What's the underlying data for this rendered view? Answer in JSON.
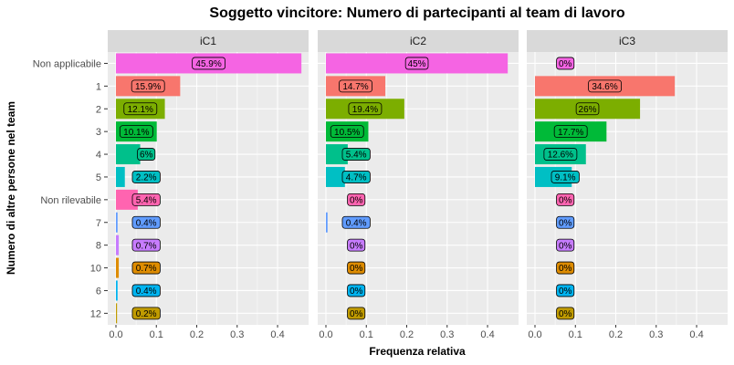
{
  "chart_data": {
    "type": "bar",
    "orientation": "horizontal",
    "title": "Soggetto vincitore: Numero di partecipanti al team di lavoro",
    "xlabel": "Frequenza relativa",
    "ylabel": "Numero di altre persone nel team",
    "xlim": [
      0,
      0.5
    ],
    "x_ticks": [
      "0.0",
      "0.1",
      "0.2",
      "0.3",
      "0.4"
    ],
    "grid": true,
    "legend": "none",
    "categories": [
      "Non applicabile",
      "1",
      "2",
      "3",
      "4",
      "5",
      "Non rilevabile",
      "7",
      "8",
      "10",
      "6",
      "12"
    ],
    "colors": [
      "#F564E3",
      "#F8766D",
      "#7CAE00",
      "#00BA38",
      "#00C08B",
      "#00BFC4",
      "#FF64B0",
      "#619CFF",
      "#C77CFF",
      "#DE8C00",
      "#00B4F0",
      "#C09B00"
    ],
    "panels": [
      {
        "name": "iC1",
        "values": [
          0.459,
          0.159,
          0.121,
          0.101,
          0.06,
          0.022,
          0.054,
          0.004,
          0.007,
          0.007,
          0.004,
          0.002
        ],
        "labels": [
          "45.9%",
          "15.9%",
          "12.1%",
          "10.1%",
          "6%",
          "2.2%",
          "5.4%",
          "0.4%",
          "0.7%",
          "0.7%",
          "0.4%",
          "0.2%"
        ]
      },
      {
        "name": "iC2",
        "values": [
          0.45,
          0.147,
          0.194,
          0.105,
          0.054,
          0.047,
          0,
          0.004,
          0,
          0,
          0,
          0
        ],
        "labels": [
          "45%",
          "14.7%",
          "19.4%",
          "10.5%",
          "5.4%",
          "4.7%",
          "0%",
          "0.4%",
          "0%",
          "0%",
          "0%",
          "0%"
        ]
      },
      {
        "name": "iC3",
        "values": [
          0,
          0.346,
          0.26,
          0.177,
          0.126,
          0.091,
          0,
          0,
          0,
          0,
          0,
          0
        ],
        "labels": [
          "0%",
          "34.6%",
          "26%",
          "17.7%",
          "12.6%",
          "9.1%",
          "0%",
          "0%",
          "0%",
          "0%",
          "0%",
          "0%"
        ]
      }
    ]
  }
}
